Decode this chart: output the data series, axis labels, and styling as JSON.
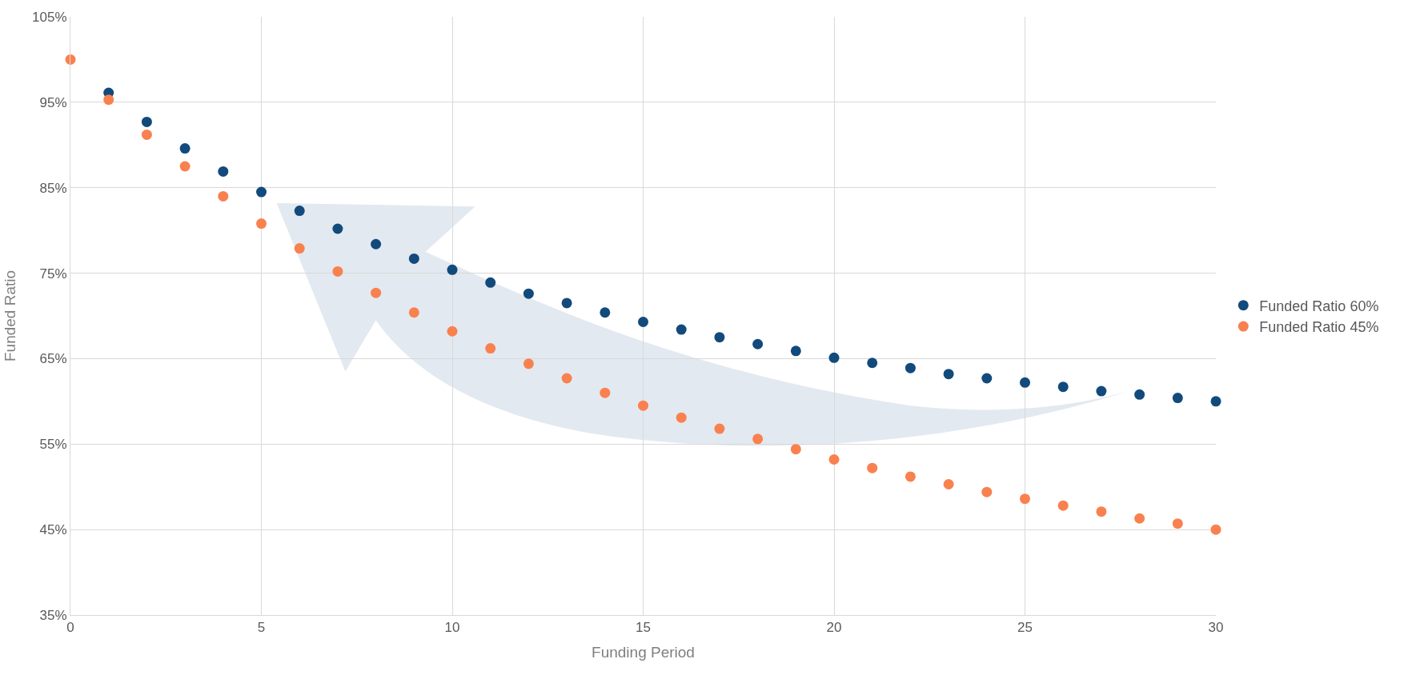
{
  "chart_data": {
    "type": "scatter",
    "xlabel": "Funding Period",
    "ylabel": "Funded Ratio",
    "x": [
      0,
      1,
      2,
      3,
      4,
      5,
      6,
      7,
      8,
      9,
      10,
      11,
      12,
      13,
      14,
      15,
      16,
      17,
      18,
      19,
      20,
      21,
      22,
      23,
      24,
      25,
      26,
      27,
      28,
      29,
      30
    ],
    "series": [
      {
        "name": "Funded Ratio 60%",
        "color": "#124a7c",
        "values": [
          null,
          96.1,
          92.7,
          89.6,
          86.9,
          84.5,
          82.3,
          80.2,
          78.4,
          76.7,
          75.4,
          73.9,
          72.6,
          71.5,
          70.4,
          69.3,
          68.4,
          67.5,
          66.7,
          65.9,
          65.1,
          64.5,
          63.9,
          63.2,
          62.7,
          62.2,
          61.7,
          61.2,
          60.8,
          60.4,
          60
        ]
      },
      {
        "name": "Funded Ratio 45%",
        "color": "#f9814f",
        "values": [
          100,
          95.3,
          91.2,
          87.5,
          84.0,
          80.8,
          77.9,
          75.2,
          72.7,
          70.4,
          68.2,
          66.2,
          64.4,
          62.7,
          61.0,
          59.5,
          58.1,
          56.8,
          55.6,
          54.4,
          53.2,
          52.2,
          51.2,
          50.3,
          49.4,
          48.6,
          47.8,
          47.1,
          46.3,
          45.7,
          45.0
        ]
      }
    ],
    "xlim": [
      0,
      30
    ],
    "xticks": [
      0,
      5,
      10,
      15,
      20,
      25,
      30
    ],
    "ylim": [
      35,
      105
    ],
    "yticks": [
      {
        "value": 35,
        "label": "35%"
      },
      {
        "value": 45,
        "label": "45%"
      },
      {
        "value": 55,
        "label": "55%"
      },
      {
        "value": 65,
        "label": "65%"
      },
      {
        "value": 75,
        "label": "75%"
      },
      {
        "value": 85,
        "label": "85%"
      },
      {
        "value": 95,
        "label": "95%"
      },
      {
        "value": 105,
        "label": "105%"
      }
    ],
    "grid": true,
    "legend": "right",
    "marker": "circle"
  }
}
